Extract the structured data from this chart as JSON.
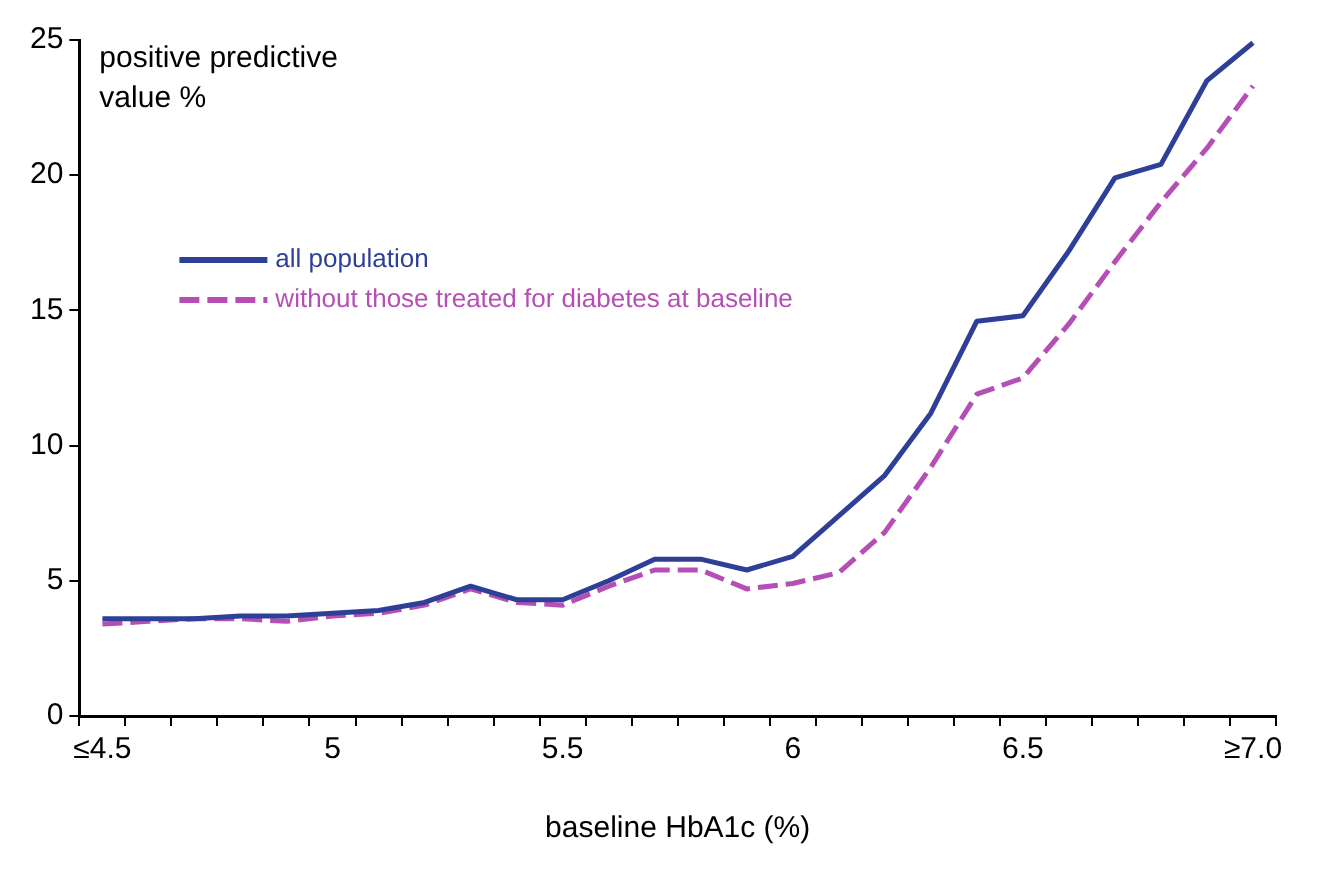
{
  "chart_data": {
    "type": "line",
    "ylabel": "positive predictive value %",
    "xlabel": "baseline HbA1c (%)",
    "categories": [
      "≤4.5",
      null,
      null,
      null,
      null,
      "5",
      null,
      null,
      null,
      null,
      "5.5",
      null,
      null,
      null,
      null,
      "6",
      null,
      null,
      null,
      null,
      "6.5",
      null,
      null,
      null,
      null,
      "≥7.0"
    ],
    "series": [
      {
        "name": "all population",
        "color": "#2e3f98",
        "line_style": "solid",
        "values": [
          3.6,
          3.6,
          3.6,
          3.7,
          3.7,
          3.8,
          3.9,
          4.2,
          4.8,
          4.3,
          4.3,
          5.0,
          5.8,
          5.8,
          5.4,
          5.9,
          7.4,
          8.9,
          11.2,
          14.6,
          14.8,
          17.2,
          19.9,
          20.4,
          23.5,
          24.9
        ]
      },
      {
        "name": "without those treated for diabetes at baseline",
        "color": "#b54fb5",
        "line_style": "dashed",
        "values": [
          3.4,
          3.5,
          3.6,
          3.6,
          3.5,
          3.7,
          3.8,
          4.1,
          4.7,
          4.2,
          4.1,
          4.8,
          5.4,
          5.4,
          4.7,
          4.9,
          5.3,
          6.8,
          9.2,
          11.9,
          12.5,
          14.5,
          16.8,
          19.0,
          21.0,
          23.3
        ]
      }
    ],
    "ylim": [
      0,
      25
    ],
    "yticks": [
      0,
      5,
      10,
      15,
      20,
      25
    ],
    "grid": false,
    "legend": "top left",
    "marker": "none"
  }
}
